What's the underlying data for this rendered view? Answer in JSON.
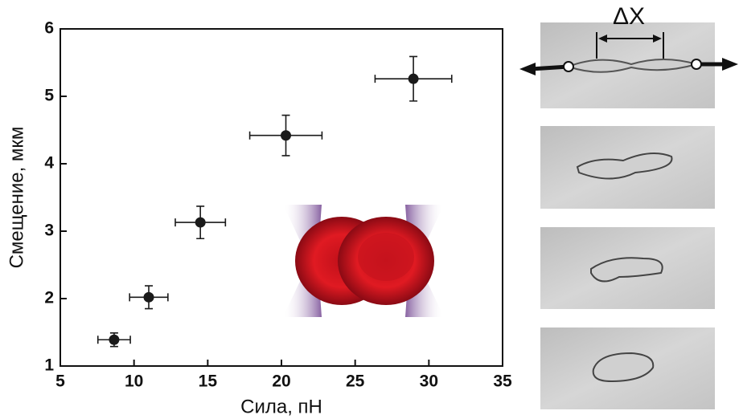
{
  "chart_data": {
    "type": "scatter",
    "xlabel": "Сила, пН",
    "ylabel": "Смещение, мкм",
    "annotation": "ΔX",
    "x": [
      8.65,
      11.0,
      14.5,
      20.3,
      28.95
    ],
    "xerr": [
      1.1,
      1.3,
      1.7,
      2.45,
      2.6
    ],
    "values": [
      1.39,
      2.02,
      3.13,
      4.42,
      5.26
    ],
    "yerr": [
      0.1,
      0.17,
      0.24,
      0.3,
      0.33
    ],
    "color": "#1a1a1a",
    "xlim": [
      5,
      35
    ],
    "xticks": [
      5,
      10,
      15,
      20,
      25,
      30,
      35
    ],
    "ylim": [
      1,
      6
    ],
    "yticks": [
      1,
      2,
      3,
      4,
      5,
      6
    ]
  }
}
